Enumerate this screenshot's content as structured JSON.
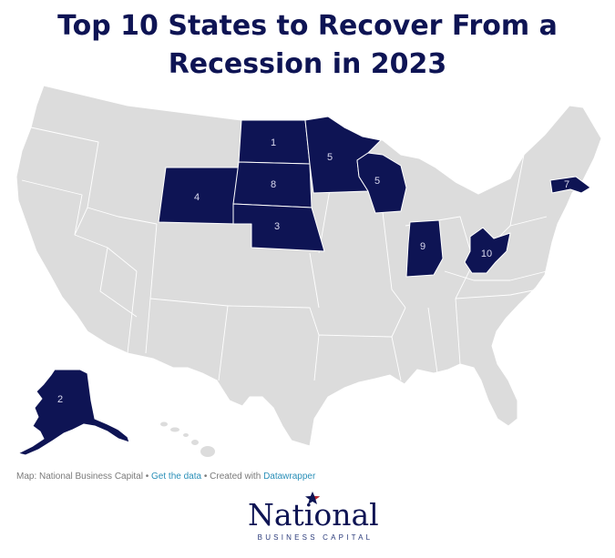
{
  "title": {
    "line1": "Top 10 States to Recover From a",
    "line2": "Recession in 2023"
  },
  "map": {
    "highlight_color": "#0e1454",
    "base_color": "#dcdcdc",
    "ranked_states": [
      {
        "state": "North Dakota",
        "rank": "1"
      },
      {
        "state": "Alaska",
        "rank": "2"
      },
      {
        "state": "Nebraska",
        "rank": "3"
      },
      {
        "state": "Wyoming",
        "rank": "4"
      },
      {
        "state": "Minnesota",
        "rank": "5"
      },
      {
        "state": "Wisconsin",
        "rank": "5"
      },
      {
        "state": "Massachusetts",
        "rank": "7"
      },
      {
        "state": "South Dakota",
        "rank": "8"
      },
      {
        "state": "Indiana",
        "rank": "9"
      },
      {
        "state": "West Virginia",
        "rank": "10"
      }
    ]
  },
  "footer": {
    "credit": "Map: National Business Capital",
    "sep1": " • ",
    "data_link": "Get the data",
    "sep2": " • Created with ",
    "tool_link": "Datawrapper"
  },
  "logo": {
    "word": "National",
    "sub": "BUSINESS CAPITAL"
  }
}
